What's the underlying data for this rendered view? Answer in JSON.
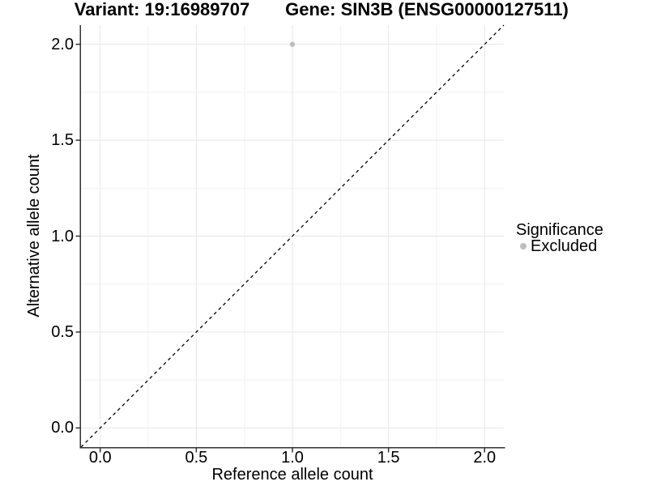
{
  "chart_data": {
    "type": "scatter",
    "title_left": "Variant: 19:16989707",
    "title_right": "Gene: SIN3B (ENSG00000127511)",
    "xlabel": "Reference allele count",
    "ylabel": "Alternative allele count",
    "xlim": [
      -0.1,
      2.1
    ],
    "ylim": [
      -0.1,
      2.1
    ],
    "x_major_ticks": [
      0.0,
      0.5,
      1.0,
      1.5,
      2.0
    ],
    "x_tick_labels": [
      "0.0",
      "0.5",
      "1.0",
      "1.5",
      "2.0"
    ],
    "x_minor_ticks": [
      0.25,
      0.75,
      1.25,
      1.75
    ],
    "y_major_ticks": [
      0.0,
      0.5,
      1.0,
      1.5,
      2.0
    ],
    "y_tick_labels": [
      "0.0",
      "0.5",
      "1.0",
      "1.5",
      "2.0"
    ],
    "y_minor_ticks": [
      0.25,
      0.75,
      1.25,
      1.75
    ],
    "grid": "major+minor",
    "reference_line": {
      "type": "identity",
      "style": "dashed",
      "from": [
        -0.1,
        -0.1
      ],
      "to": [
        2.1,
        2.1
      ],
      "color": "#000000"
    },
    "series": [
      {
        "name": "Excluded",
        "color": "#bebebe",
        "points": [
          {
            "x": 1.0,
            "y": 2.0
          }
        ]
      }
    ],
    "legend": {
      "title": "Significance",
      "position": "right",
      "entries": [
        {
          "label": "Excluded",
          "color": "#bebebe",
          "marker": "circle"
        }
      ]
    }
  },
  "colors": {
    "background": "#ffffff",
    "grid_major": "#e7e7e7",
    "grid_minor": "#f2f2f2",
    "axis_line": "#333333",
    "dashed_line": "#000000",
    "point": "#bebebe",
    "text": "#000000"
  }
}
